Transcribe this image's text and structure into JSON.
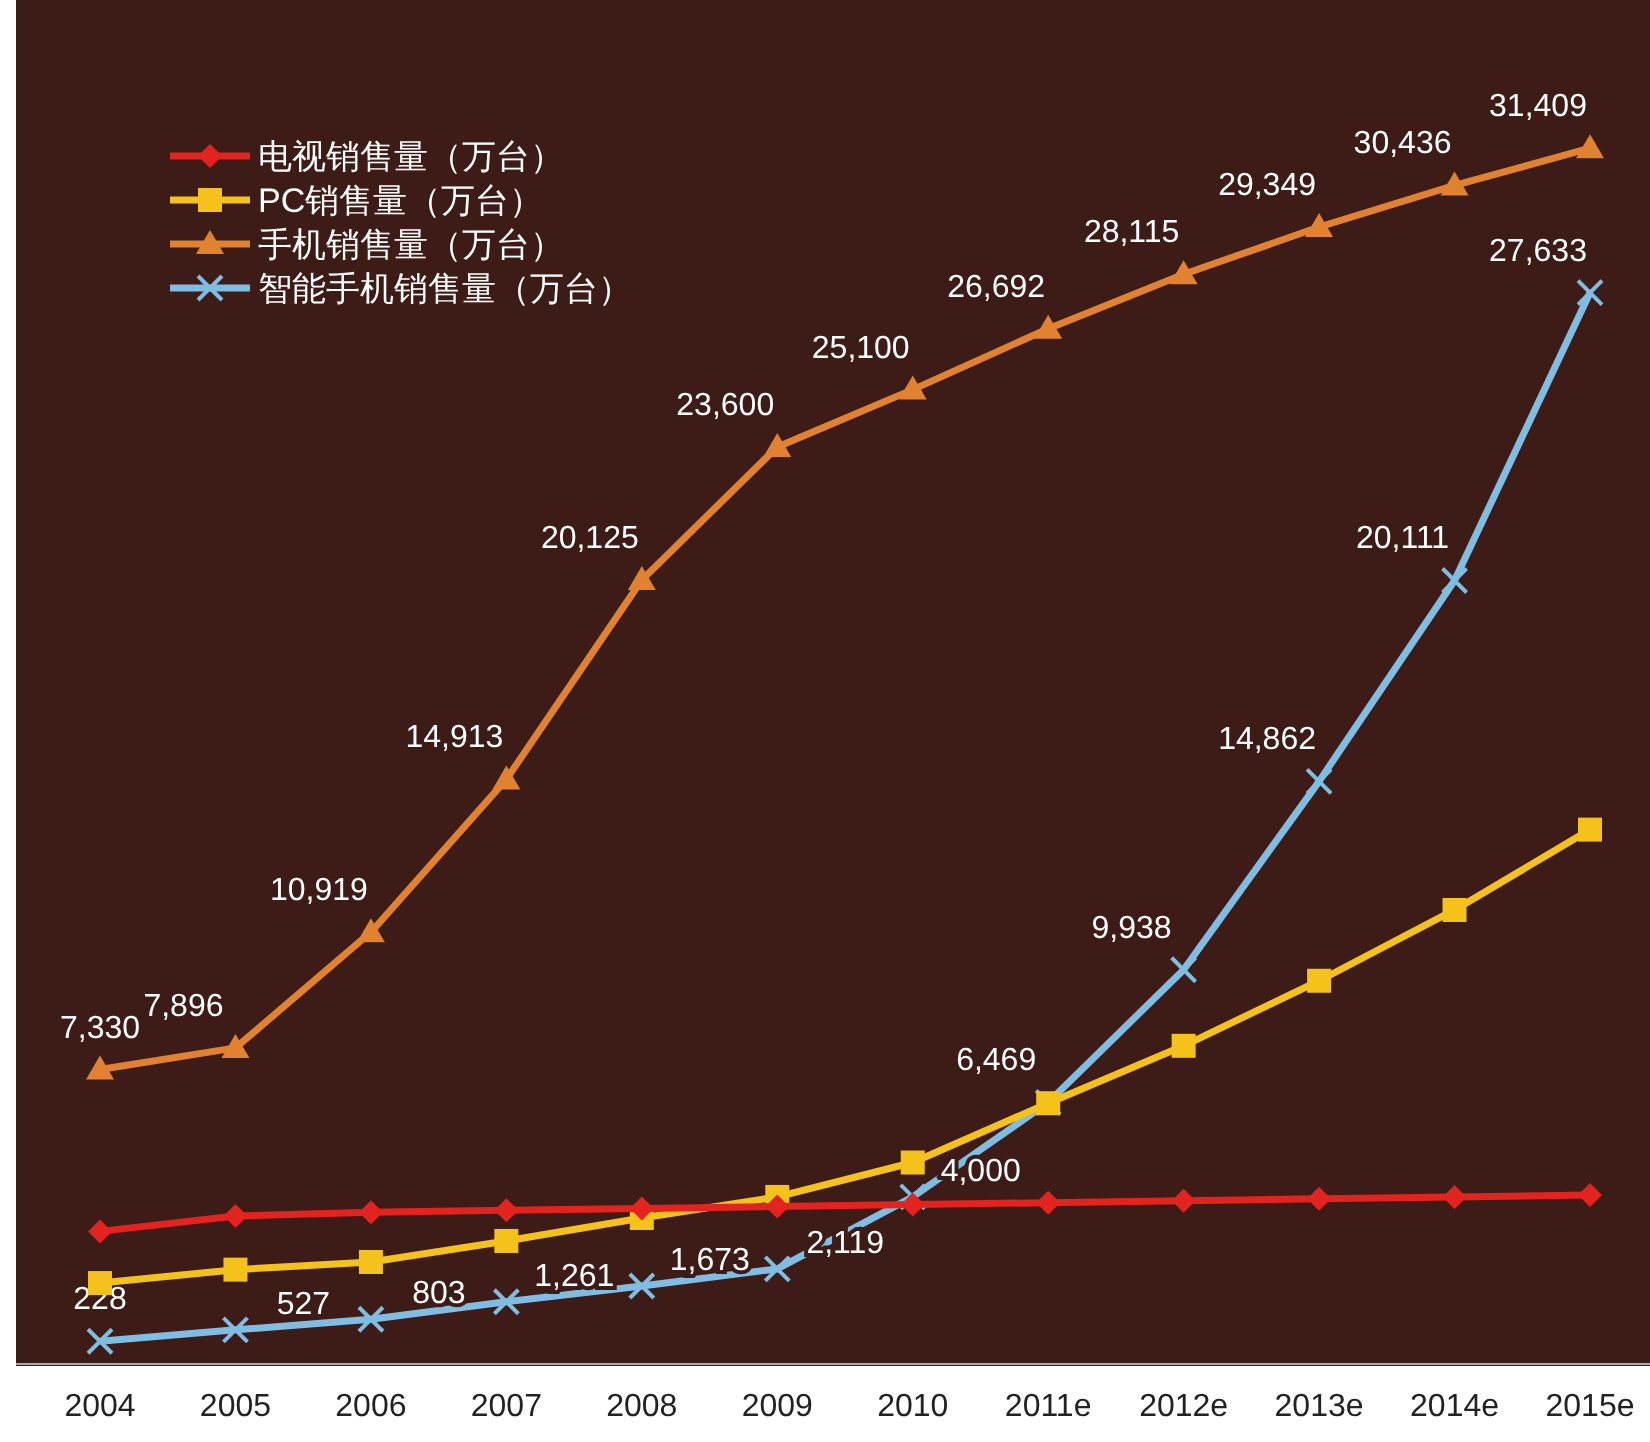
{
  "chart_data": {
    "type": "line",
    "categories": [
      "2004",
      "2005",
      "2006",
      "2007",
      "2008",
      "2009",
      "2010",
      "2011e",
      "2012e",
      "2013e",
      "2014e",
      "2015e"
    ],
    "legend": "top left",
    "grid": false,
    "series": [
      {
        "name": "电视销售量（万台）",
        "color": "#e3231d",
        "marker": "diamond",
        "values": [
          3100,
          3500,
          3600,
          3650,
          3700,
          3750,
          3800,
          3850,
          3900,
          3950,
          4000,
          4050
        ]
      },
      {
        "name": "PC销售量（万台）",
        "color": "#f5c21b",
        "marker": "square",
        "values": [
          1750,
          2100,
          2300,
          2850,
          3450,
          4000,
          4900,
          6450,
          7950,
          9650,
          11500,
          13600
        ]
      },
      {
        "name": "手机销售量（万台）",
        "color": "#e0822f",
        "marker": "triangle",
        "values": [
          7330,
          7896,
          10919,
          14913,
          20125,
          23600,
          25100,
          26692,
          28115,
          29349,
          30436,
          31409
        ],
        "value_labels": [
          "7,330",
          "7,896",
          "10,919",
          "14,913",
          "20,125",
          "23,600",
          "25,100",
          "26,692",
          "28,115",
          "29,349",
          "30,436",
          "31,409"
        ]
      },
      {
        "name": "智能手机销售量（万台）",
        "color": "#7fbde3",
        "marker": "cross",
        "values": [
          228,
          527,
          803,
          1261,
          1673,
          2119,
          4000,
          6469,
          9938,
          14862,
          20111,
          27633
        ],
        "value_labels": [
          "228",
          "527",
          "803",
          "1,261",
          "1,673",
          "2,119",
          "4,000",
          "6,469",
          "9,938",
          "14,862",
          "20,111",
          "27,633"
        ]
      }
    ]
  }
}
